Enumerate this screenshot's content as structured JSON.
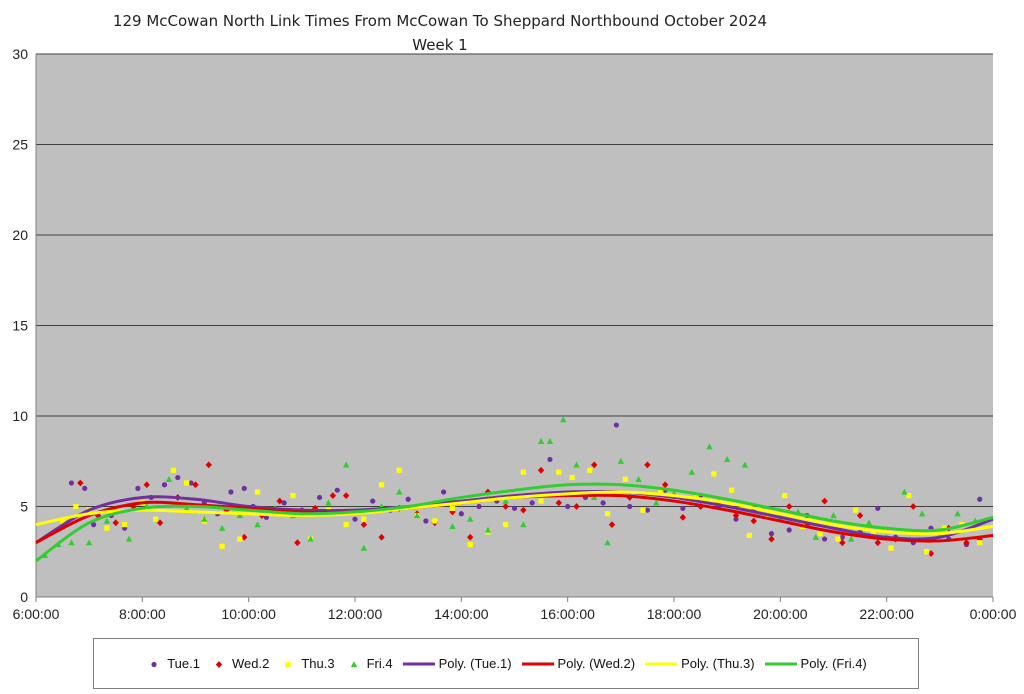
{
  "chart_data": {
    "type": "scatter",
    "title": "129 McCowan North Link Times From McCowan To Sheppard Northbound October 2024",
    "subtitle": "Week 1",
    "xlabel": "",
    "ylabel": "",
    "xlim": [
      "6:00:00",
      "0:00:00"
    ],
    "ylim": [
      0,
      30
    ],
    "yticks": [
      0,
      5,
      10,
      15,
      20,
      25,
      30
    ],
    "xtick_labels": [
      "6:00:00",
      "8:00:00",
      "10:00:00",
      "12:00:00",
      "14:00:00",
      "16:00:00",
      "18:00:00",
      "20:00:00",
      "22:00:00",
      "0:00:00"
    ],
    "grid": "horizontal",
    "legend_position": "bottom",
    "series": [
      {
        "name": "Tue.1",
        "color": "#7030A0",
        "marker": "circle",
        "x": [
          "6:40",
          "6:55",
          "7:05",
          "7:25",
          "7:40",
          "7:55",
          "8:10",
          "8:25",
          "8:40",
          "8:55",
          "9:10",
          "9:25",
          "9:40",
          "9:55",
          "10:05",
          "10:20",
          "10:40",
          "11:00",
          "11:20",
          "11:40",
          "12:00",
          "12:20",
          "12:40",
          "13:00",
          "13:20",
          "13:40",
          "14:00",
          "14:20",
          "14:40",
          "15:00",
          "15:20",
          "15:40",
          "16:00",
          "16:20",
          "16:40",
          "16:55",
          "17:10",
          "17:30",
          "17:50",
          "18:10",
          "18:30",
          "18:50",
          "19:10",
          "19:30",
          "19:50",
          "20:10",
          "20:30",
          "20:50",
          "21:10",
          "21:30",
          "21:50",
          "22:10",
          "22:30",
          "22:50",
          "23:10",
          "23:30",
          "23:45"
        ],
        "y": [
          6.3,
          6.0,
          4.0,
          4.5,
          3.8,
          6.0,
          5.5,
          6.2,
          6.6,
          6.3,
          5.2,
          4.6,
          5.8,
          6.0,
          5.0,
          4.4,
          5.2,
          4.8,
          5.5,
          5.9,
          4.3,
          5.3,
          4.8,
          5.4,
          4.2,
          5.8,
          4.6,
          5.0,
          5.3,
          4.9,
          5.2,
          7.6,
          5.0,
          5.5,
          5.2,
          9.5,
          5.0,
          4.8,
          5.9,
          4.9,
          5.6,
          5.0,
          4.3,
          4.8,
          3.5,
          3.7,
          4.5,
          3.2,
          3.3,
          3.6,
          4.9,
          3.3,
          3.0,
          3.8,
          3.2,
          2.9,
          5.4
        ]
      },
      {
        "name": "Wed.2",
        "color": "#E00000",
        "marker": "diamond",
        "x": [
          "6:50",
          "7:10",
          "7:30",
          "7:50",
          "8:05",
          "8:20",
          "8:40",
          "9:00",
          "9:15",
          "9:35",
          "9:55",
          "10:15",
          "10:35",
          "10:55",
          "11:15",
          "11:35",
          "11:50",
          "12:10",
          "12:30",
          "12:50",
          "13:10",
          "13:30",
          "13:50",
          "14:10",
          "14:30",
          "14:50",
          "15:10",
          "15:30",
          "15:50",
          "16:10",
          "16:30",
          "16:50",
          "17:10",
          "17:30",
          "17:50",
          "18:10",
          "18:30",
          "18:50",
          "19:10",
          "19:30",
          "19:50",
          "20:10",
          "20:30",
          "20:50",
          "21:10",
          "21:30",
          "21:50",
          "22:10",
          "22:30",
          "22:50",
          "23:10",
          "23:30",
          "23:45"
        ],
        "y": [
          6.3,
          4.5,
          4.1,
          5.0,
          6.2,
          4.1,
          5.5,
          6.2,
          7.3,
          4.8,
          3.3,
          4.5,
          5.3,
          3.0,
          4.9,
          5.6,
          5.6,
          4.0,
          3.3,
          4.9,
          4.6,
          4.1,
          4.7,
          3.3,
          5.8,
          5.0,
          4.8,
          7.0,
          5.2,
          5.0,
          7.3,
          4.0,
          5.5,
          7.3,
          6.2,
          4.4,
          5.0,
          5.2,
          4.5,
          4.2,
          3.2,
          5.0,
          4.0,
          5.3,
          3.0,
          4.5,
          3.0,
          3.2,
          5.0,
          2.4,
          3.8,
          3.0,
          3.2
        ]
      },
      {
        "name": "Thu.3",
        "color": "#FFFF00",
        "marker": "square",
        "x": [
          "6:30",
          "6:45",
          "7:00",
          "7:20",
          "7:40",
          "8:00",
          "8:15",
          "8:35",
          "8:50",
          "9:10",
          "9:30",
          "9:50",
          "10:10",
          "10:30",
          "10:50",
          "11:10",
          "11:30",
          "11:50",
          "12:10",
          "12:30",
          "12:50",
          "13:10",
          "13:30",
          "13:50",
          "14:10",
          "14:30",
          "14:50",
          "15:10",
          "15:30",
          "15:50",
          "16:05",
          "16:25",
          "16:45",
          "17:05",
          "17:25",
          "17:45",
          "18:05",
          "18:25",
          "18:45",
          "19:05",
          "19:25",
          "19:45",
          "20:05",
          "20:25",
          "20:45",
          "21:05",
          "21:25",
          "21:45",
          "22:05",
          "22:25",
          "22:45",
          "23:05",
          "23:25",
          "23:45"
        ],
        "y": [
          4.2,
          5.0,
          4.8,
          3.8,
          4.0,
          5.2,
          4.3,
          7.0,
          6.3,
          4.2,
          2.8,
          3.2,
          5.8,
          4.7,
          5.6,
          3.2,
          4.8,
          4.0,
          4.3,
          6.2,
          7.0,
          4.5,
          4.2,
          4.9,
          2.9,
          3.6,
          4.0,
          6.9,
          5.3,
          6.9,
          6.6,
          7.0,
          4.6,
          6.5,
          4.8,
          5.9,
          5.5,
          5.5,
          6.8,
          5.9,
          3.4,
          4.4,
          5.6,
          3.9,
          3.5,
          3.2,
          4.8,
          3.5,
          2.7,
          5.6,
          2.5,
          3.8,
          4.0,
          3.0
        ]
      },
      {
        "name": "Fri.4",
        "color": "#33CC33",
        "marker": "triangle",
        "x": [
          "6:10",
          "6:25",
          "6:40",
          "7:00",
          "7:20",
          "7:45",
          "8:05",
          "8:30",
          "8:50",
          "9:10",
          "9:30",
          "9:50",
          "10:10",
          "10:30",
          "10:50",
          "11:10",
          "11:30",
          "11:50",
          "12:10",
          "12:30",
          "12:50",
          "13:10",
          "13:30",
          "13:50",
          "14:10",
          "14:30",
          "14:50",
          "15:10",
          "15:30",
          "15:40",
          "15:55",
          "16:10",
          "16:30",
          "16:45",
          "17:00",
          "17:20",
          "17:40",
          "18:00",
          "18:20",
          "18:40",
          "19:00",
          "19:20",
          "19:40",
          "20:00",
          "20:20",
          "20:40",
          "21:00",
          "21:20",
          "21:40",
          "22:00",
          "22:20",
          "22:40",
          "23:00",
          "23:20",
          "23:40"
        ],
        "y": [
          2.3,
          2.9,
          3.0,
          3.0,
          4.2,
          3.2,
          5.0,
          6.5,
          4.9,
          4.3,
          3.8,
          4.5,
          4.0,
          4.9,
          4.5,
          3.2,
          5.2,
          7.3,
          2.7,
          5.0,
          5.8,
          4.5,
          5.2,
          3.9,
          4.3,
          3.7,
          5.3,
          4.0,
          8.6,
          8.6,
          9.8,
          7.3,
          5.5,
          3.0,
          7.5,
          6.5,
          5.2,
          5.7,
          6.9,
          8.3,
          7.6,
          7.3,
          4.9,
          4.4,
          4.7,
          3.3,
          4.5,
          3.2,
          4.1,
          3.3,
          5.8,
          4.6,
          3.4,
          4.6,
          4.2
        ]
      },
      {
        "name": "Poly. (Tue.1)",
        "color": "#7030A0",
        "line": true,
        "x": [
          "6:00",
          "7:00",
          "8:00",
          "9:00",
          "10:00",
          "11:00",
          "12:00",
          "13:00",
          "14:00",
          "15:00",
          "16:00",
          "17:00",
          "18:00",
          "19:00",
          "20:00",
          "21:00",
          "22:00",
          "23:00",
          "0:00"
        ],
        "y": [
          3.0,
          4.8,
          5.5,
          5.4,
          5.0,
          4.8,
          4.8,
          5.0,
          5.3,
          5.6,
          5.8,
          5.8,
          5.5,
          5.0,
          4.4,
          3.8,
          3.3,
          3.3,
          4.3
        ]
      },
      {
        "name": "Poly. (Wed.2)",
        "color": "#E00000",
        "line": true,
        "x": [
          "6:00",
          "7:00",
          "8:00",
          "9:00",
          "10:00",
          "11:00",
          "12:00",
          "13:00",
          "14:00",
          "15:00",
          "16:00",
          "17:00",
          "18:00",
          "19:00",
          "20:00",
          "21:00",
          "22:00",
          "23:00",
          "0:00"
        ],
        "y": [
          3.0,
          4.5,
          5.2,
          5.1,
          4.9,
          4.7,
          4.7,
          4.9,
          5.2,
          5.5,
          5.6,
          5.6,
          5.3,
          4.8,
          4.2,
          3.6,
          3.2,
          3.1,
          3.4
        ]
      },
      {
        "name": "Poly. (Thu.3)",
        "color": "#FFFF00",
        "line": true,
        "x": [
          "6:00",
          "7:00",
          "8:00",
          "9:00",
          "10:00",
          "11:00",
          "12:00",
          "13:00",
          "14:00",
          "15:00",
          "16:00",
          "17:00",
          "18:00",
          "19:00",
          "20:00",
          "21:00",
          "22:00",
          "23:00",
          "0:00"
        ],
        "y": [
          4.0,
          4.6,
          4.8,
          4.7,
          4.6,
          4.5,
          4.6,
          4.9,
          5.2,
          5.5,
          5.7,
          5.8,
          5.6,
          5.2,
          4.6,
          4.0,
          3.6,
          3.5,
          3.9
        ]
      },
      {
        "name": "Poly. (Fri.4)",
        "color": "#33CC33",
        "line": true,
        "x": [
          "6:00",
          "7:00",
          "8:00",
          "9:00",
          "10:00",
          "11:00",
          "12:00",
          "13:00",
          "14:00",
          "15:00",
          "16:00",
          "17:00",
          "18:00",
          "19:00",
          "20:00",
          "21:00",
          "22:00",
          "23:00",
          "0:00"
        ],
        "y": [
          2.0,
          4.1,
          4.9,
          5.0,
          4.8,
          4.6,
          4.7,
          5.0,
          5.5,
          5.9,
          6.2,
          6.2,
          5.9,
          5.4,
          4.8,
          4.2,
          3.8,
          3.7,
          4.4
        ]
      }
    ]
  }
}
